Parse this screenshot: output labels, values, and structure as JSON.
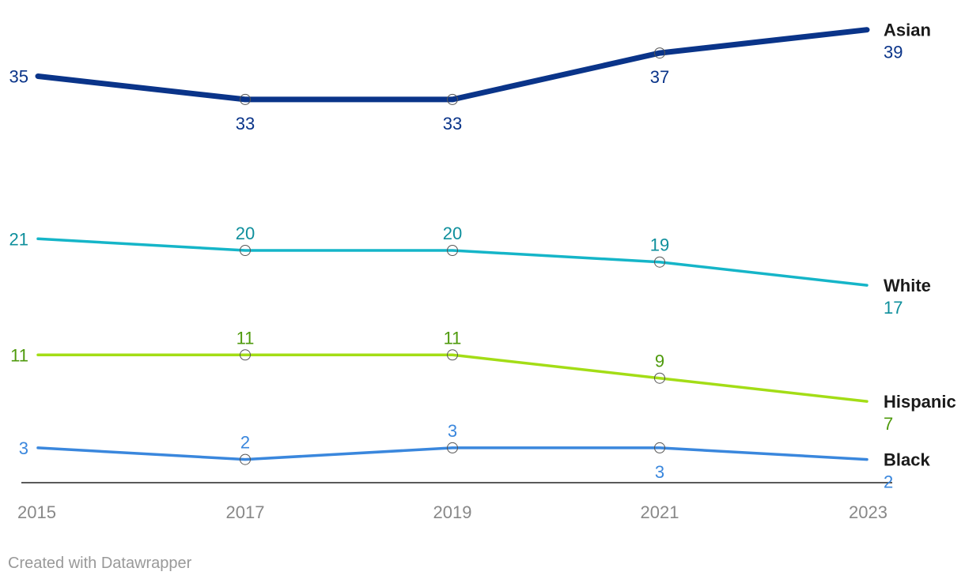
{
  "chart_data": {
    "type": "line",
    "x": [
      "2015",
      "2017",
      "2019",
      "2021",
      "2023"
    ],
    "series": [
      {
        "name": "Asian",
        "values": [
          35,
          33,
          33,
          37,
          39
        ],
        "color": "#0a3489",
        "label_color": "#0a3489"
      },
      {
        "name": "White",
        "values": [
          21,
          20,
          20,
          19,
          17
        ],
        "color": "#15b5c8",
        "label_color": "#0e8f9c"
      },
      {
        "name": "Hispanic",
        "values": [
          11,
          11,
          11,
          9,
          7
        ],
        "color": "#a3dd16",
        "label_color": "#4e9a0c"
      },
      {
        "name": "Black",
        "values": [
          3,
          2,
          3,
          3,
          2
        ],
        "color": "#3a87dd",
        "label_color": "#3a87dd"
      }
    ],
    "ylim": [
      0,
      39
    ],
    "xlabel": "",
    "ylabel": "",
    "grid": false
  },
  "footer": "Created with Datawrapper"
}
